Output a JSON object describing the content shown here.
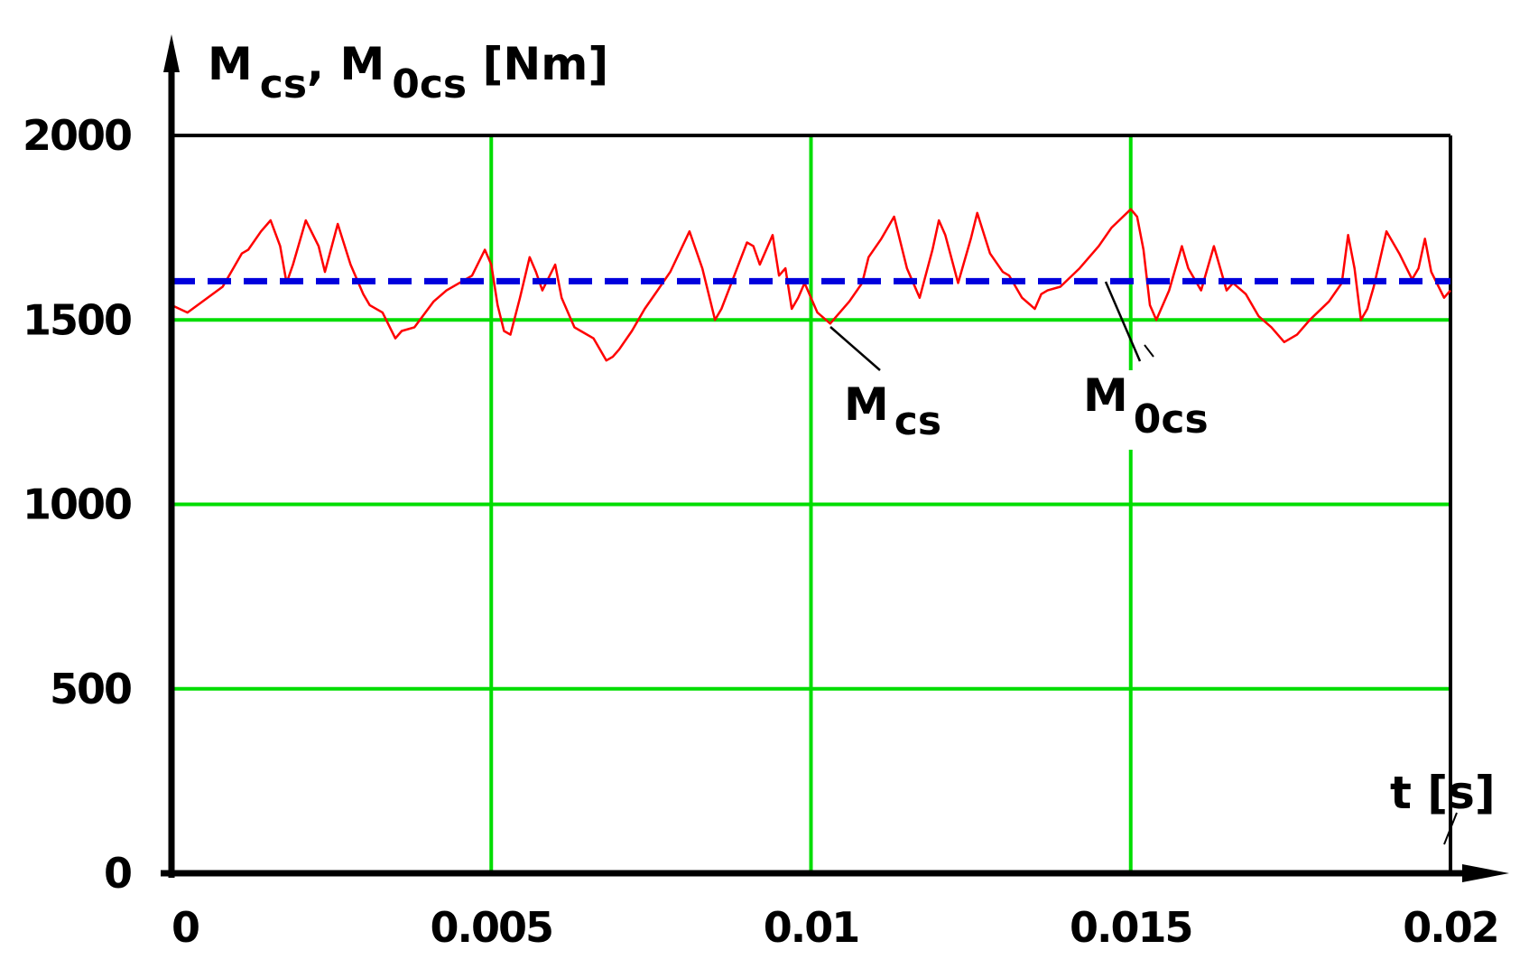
{
  "chart_data": {
    "type": "line",
    "title": "",
    "ylabel": {
      "parts": [
        {
          "text": "M",
          "sub": "cs"
        },
        {
          "text": ", M",
          "sub": "0cs"
        },
        {
          "text": " [Nm]",
          "sub": ""
        }
      ]
    },
    "xlabel": "t [s]",
    "xlim": [
      0,
      0.02
    ],
    "ylim": [
      0,
      2000
    ],
    "grid": true,
    "xticks": [
      {
        "value": 0,
        "label": "0"
      },
      {
        "value": 0.005,
        "label": "0.005"
      },
      {
        "value": 0.01,
        "label": "0.01"
      },
      {
        "value": 0.015,
        "label": "0.015"
      },
      {
        "value": 0.02,
        "label": "0.02"
      }
    ],
    "yticks": [
      {
        "value": 0,
        "label": "0"
      },
      {
        "value": 500,
        "label": "500"
      },
      {
        "value": 1000,
        "label": "1000"
      },
      {
        "value": 1500,
        "label": "1500"
      },
      {
        "value": 2000,
        "label": "2000"
      }
    ],
    "colors": {
      "grid": "#00dd00",
      "mcs": "#ff0000",
      "m0cs": "#0000dd",
      "axis": "#000000"
    },
    "series": [
      {
        "name": "M_cs",
        "style": "solid",
        "label_text": "M",
        "label_sub": "cs",
        "x": [
          0,
          0.00025,
          0.0008,
          0.0011,
          0.0012,
          0.0014,
          0.00155,
          0.0017,
          0.0018,
          0.0019,
          0.0021,
          0.0023,
          0.0024,
          0.0026,
          0.0028,
          0.003,
          0.0031,
          0.0033,
          0.0035,
          0.0036,
          0.0038,
          0.0041,
          0.0043,
          0.0047,
          0.0049,
          0.005,
          0.0051,
          0.0052,
          0.0053,
          0.00545,
          0.0056,
          0.0057,
          0.0058,
          0.006,
          0.0061,
          0.0063,
          0.0064,
          0.0066,
          0.0068,
          0.0069,
          0.007,
          0.0072,
          0.0074,
          0.0076,
          0.0078,
          0.0081,
          0.0083,
          0.0085,
          0.0086,
          0.0088,
          0.009,
          0.0091,
          0.0092,
          0.0094,
          0.0095,
          0.0096,
          0.0097,
          0.0098,
          0.0099,
          0.01,
          0.0101,
          0.0103,
          0.0104,
          0.0106,
          0.0108,
          0.0109,
          0.0111,
          0.0113,
          0.0115,
          0.0117,
          0.0119,
          0.012,
          0.0121,
          0.0123,
          0.0125,
          0.0126,
          0.0128,
          0.013,
          0.0131,
          0.0133,
          0.0135,
          0.0136,
          0.0137,
          0.0139,
          0.0142,
          0.0145,
          0.0147,
          0.015,
          0.0151,
          0.0152,
          0.0153,
          0.0154,
          0.0156,
          0.0158,
          0.0159,
          0.0161,
          0.0162,
          0.0163,
          0.0165,
          0.0166,
          0.0168,
          0.017,
          0.0172,
          0.0174,
          0.0176,
          0.0178,
          0.0181,
          0.0183,
          0.0184,
          0.0185,
          0.0186,
          0.0187,
          0.0188,
          0.019,
          0.0192,
          0.0194,
          0.0195,
          0.0196,
          0.0197,
          0.0199,
          0.02
        ],
        "values": [
          1540,
          1520,
          1590,
          1680,
          1690,
          1740,
          1770,
          1700,
          1600,
          1650,
          1770,
          1700,
          1630,
          1760,
          1650,
          1570,
          1540,
          1520,
          1450,
          1470,
          1480,
          1550,
          1580,
          1620,
          1690,
          1650,
          1540,
          1470,
          1460,
          1560,
          1670,
          1630,
          1580,
          1650,
          1560,
          1480,
          1470,
          1450,
          1390,
          1400,
          1420,
          1470,
          1530,
          1580,
          1630,
          1740,
          1640,
          1500,
          1530,
          1620,
          1710,
          1700,
          1650,
          1730,
          1620,
          1640,
          1530,
          1560,
          1600,
          1560,
          1520,
          1490,
          1510,
          1550,
          1600,
          1670,
          1720,
          1780,
          1640,
          1560,
          1690,
          1770,
          1730,
          1600,
          1720,
          1790,
          1680,
          1630,
          1620,
          1560,
          1530,
          1570,
          1580,
          1590,
          1640,
          1700,
          1750,
          1800,
          1780,
          1690,
          1540,
          1500,
          1580,
          1700,
          1640,
          1580,
          1640,
          1700,
          1580,
          1600,
          1570,
          1510,
          1480,
          1440,
          1460,
          1500,
          1550,
          1600,
          1730,
          1640,
          1500,
          1530,
          1590,
          1740,
          1680,
          1610,
          1640,
          1720,
          1630,
          1560,
          1580
        ]
      },
      {
        "name": "M_0cs",
        "style": "dashed",
        "label_text": "M",
        "label_sub": "0cs",
        "x": [
          0,
          0.02
        ],
        "values": [
          1605,
          1605
        ]
      }
    ]
  }
}
